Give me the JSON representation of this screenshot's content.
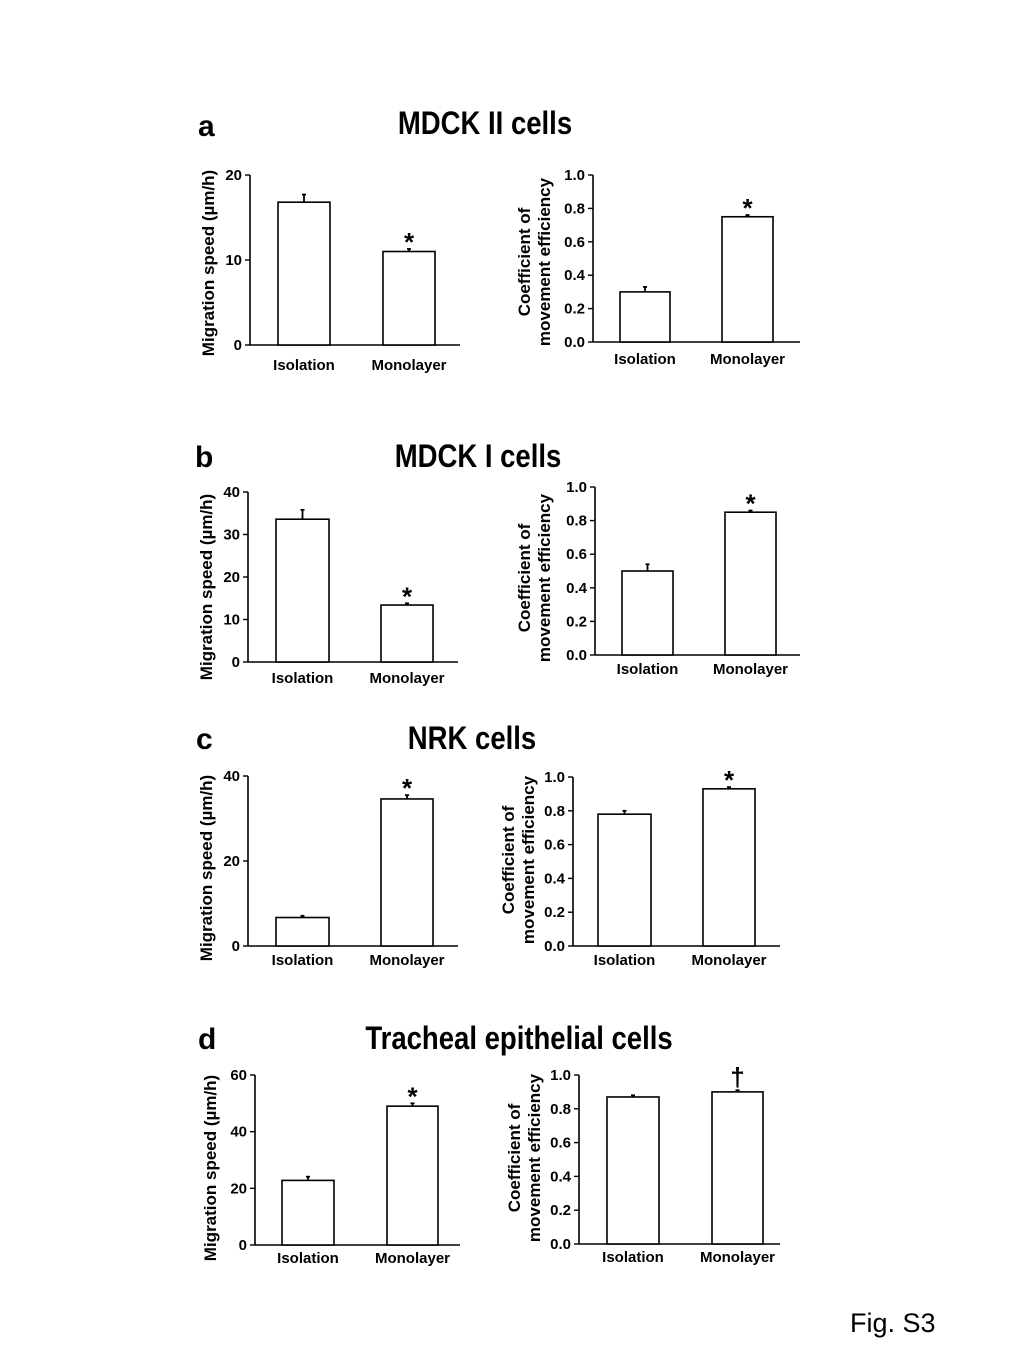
{
  "figure_label": "Fig. S3",
  "panels": [
    {
      "letter": "a",
      "title": "MDCK II cells"
    },
    {
      "letter": "b",
      "title": "MDCK I cells"
    },
    {
      "letter": "c",
      "title": "NRK cells"
    },
    {
      "letter": "d",
      "title": "Tracheal epithelial cells"
    }
  ],
  "chart_data": [
    {
      "panel": "a",
      "type": "bar",
      "title": "",
      "ylabel": "Migration speed (µm/h)",
      "categories": [
        "Isolation",
        "Monolayer"
      ],
      "values": [
        16.8,
        11.0
      ],
      "errors": [
        0.9,
        0.3
      ],
      "ylim": [
        0,
        20
      ],
      "yticks": [
        "0",
        "10",
        "20"
      ],
      "significance": [
        "",
        "*"
      ]
    },
    {
      "panel": "a",
      "type": "bar",
      "title": "",
      "ylabel": [
        "Coefficient of",
        "movement efficiency"
      ],
      "categories": [
        "Isolation",
        "Monolayer"
      ],
      "values": [
        0.3,
        0.75
      ],
      "errors": [
        0.03,
        0.01
      ],
      "ylim": [
        0,
        1.0
      ],
      "yticks": [
        "0.0",
        "0.2",
        "0.4",
        "0.6",
        "0.8",
        "1.0"
      ],
      "significance": [
        "",
        "*"
      ]
    },
    {
      "panel": "b",
      "type": "bar",
      "title": "",
      "ylabel": "Migration speed (µm/h)",
      "categories": [
        "Isolation",
        "Monolayer"
      ],
      "values": [
        33.6,
        13.4
      ],
      "errors": [
        2.2,
        0.4
      ],
      "ylim": [
        0,
        40
      ],
      "yticks": [
        "0",
        "10",
        "20",
        "30",
        "40"
      ],
      "significance": [
        "",
        "*"
      ]
    },
    {
      "panel": "b",
      "type": "bar",
      "title": "",
      "ylabel": [
        "Coefficient of",
        "movement efficiency"
      ],
      "categories": [
        "Isolation",
        "Monolayer"
      ],
      "values": [
        0.5,
        0.85
      ],
      "errors": [
        0.04,
        0.01
      ],
      "ylim": [
        0,
        1.0
      ],
      "yticks": [
        "0.0",
        "0.2",
        "0.4",
        "0.6",
        "0.8",
        "1.0"
      ],
      "significance": [
        "",
        "*"
      ]
    },
    {
      "panel": "c",
      "type": "bar",
      "title": "",
      "ylabel": "Migration speed (µm/h)",
      "categories": [
        "Isolation",
        "Monolayer"
      ],
      "values": [
        6.7,
        34.6
      ],
      "errors": [
        0.4,
        0.9
      ],
      "ylim": [
        0,
        40
      ],
      "yticks": [
        "0",
        "20",
        "40"
      ],
      "significance": [
        "",
        "*"
      ]
    },
    {
      "panel": "c",
      "type": "bar",
      "title": "",
      "ylabel": [
        "Coefficient of",
        "movement efficiency"
      ],
      "categories": [
        "Isolation",
        "Monolayer"
      ],
      "values": [
        0.78,
        0.93
      ],
      "errors": [
        0.02,
        0.01
      ],
      "ylim": [
        0,
        1.0
      ],
      "yticks": [
        "0.0",
        "0.2",
        "0.4",
        "0.6",
        "0.8",
        "1.0"
      ],
      "significance": [
        "",
        "*"
      ]
    },
    {
      "panel": "d",
      "type": "bar",
      "title": "",
      "ylabel": "Migration speed (µm/h)",
      "categories": [
        "Isolation",
        "Monolayer"
      ],
      "values": [
        22.8,
        49.0
      ],
      "errors": [
        1.3,
        1.0
      ],
      "ylim": [
        0,
        60
      ],
      "yticks": [
        "0",
        "20",
        "40",
        "60"
      ],
      "significance": [
        "",
        "*"
      ]
    },
    {
      "panel": "d",
      "type": "bar",
      "title": "",
      "ylabel": [
        "Coefficient of",
        "movement efficiency"
      ],
      "categories": [
        "Isolation",
        "Monolayer"
      ],
      "values": [
        0.87,
        0.9
      ],
      "errors": [
        0.01,
        0.01
      ],
      "ylim": [
        0,
        1.0
      ],
      "yticks": [
        "0.0",
        "0.2",
        "0.4",
        "0.6",
        "0.8",
        "1.0"
      ],
      "significance": [
        "",
        "†"
      ]
    }
  ]
}
